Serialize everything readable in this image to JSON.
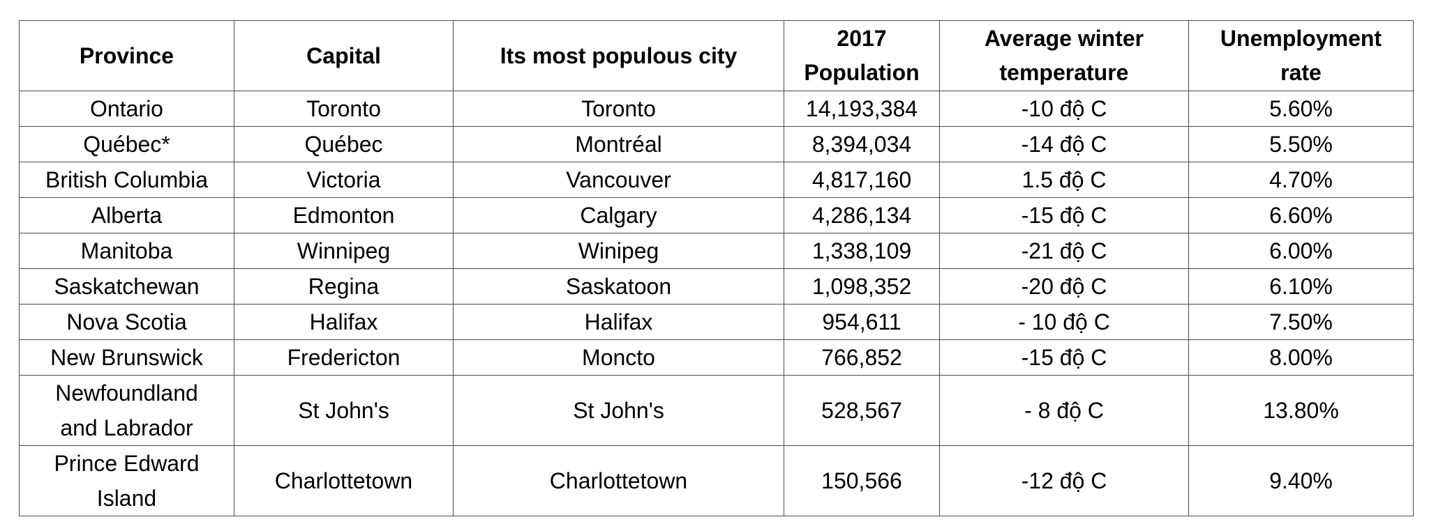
{
  "table": {
    "headers": {
      "province": "Province",
      "capital": "Capital",
      "populous_city": "Its most populous city",
      "population": [
        "2017",
        "Population"
      ],
      "temperature": [
        "Average winter",
        "temperature"
      ],
      "unemployment": [
        "Unemployment",
        "rate"
      ]
    },
    "rows": [
      {
        "province": [
          "Ontario"
        ],
        "capital": "Toronto",
        "city": "Toronto",
        "population": "14,193,384",
        "temperature": "-10 độ C",
        "unemployment": "5.60%"
      },
      {
        "province": [
          "Québec*"
        ],
        "capital": "Québec",
        "city": "Montréal",
        "population": "8,394,034",
        "temperature": "-14 độ C",
        "unemployment": "5.50%"
      },
      {
        "province": [
          "British Columbia"
        ],
        "capital": "Victoria",
        "city": "Vancouver",
        "population": "4,817,160",
        "temperature": "1.5 độ C",
        "unemployment": "4.70%"
      },
      {
        "province": [
          "Alberta"
        ],
        "capital": "Edmonton",
        "city": "Calgary",
        "population": "4,286,134",
        "temperature": "-15 độ C",
        "unemployment": "6.60%"
      },
      {
        "province": [
          "Manitoba"
        ],
        "capital": "Winnipeg",
        "city": "Winipeg",
        "population": "1,338,109",
        "temperature": "-21 độ C",
        "unemployment": "6.00%"
      },
      {
        "province": [
          "Saskatchewan"
        ],
        "capital": "Regina",
        "city": "Saskatoon",
        "population": "1,098,352",
        "temperature": "-20 độ C",
        "unemployment": "6.10%"
      },
      {
        "province": [
          "Nova Scotia"
        ],
        "capital": "Halifax",
        "city": "Halifax",
        "population": "954,611",
        "temperature": "- 10 độ C",
        "unemployment": "7.50%"
      },
      {
        "province": [
          "New Brunswick"
        ],
        "capital": "Fredericton",
        "city": "Moncto",
        "population": "766,852",
        "temperature": "-15 độ C",
        "unemployment": "8.00%"
      },
      {
        "province": [
          "Newfoundland",
          "and Labrador"
        ],
        "capital": "St John's",
        "city": "St John's",
        "population": "528,567",
        "temperature": "- 8 độ C",
        "unemployment": "13.80%"
      },
      {
        "province": [
          "Prince Edward",
          "Island"
        ],
        "capital": "Charlottetown",
        "city": "Charlottetown",
        "population": "150,566",
        "temperature": "-12 độ C",
        "unemployment": "9.40%"
      }
    ]
  }
}
